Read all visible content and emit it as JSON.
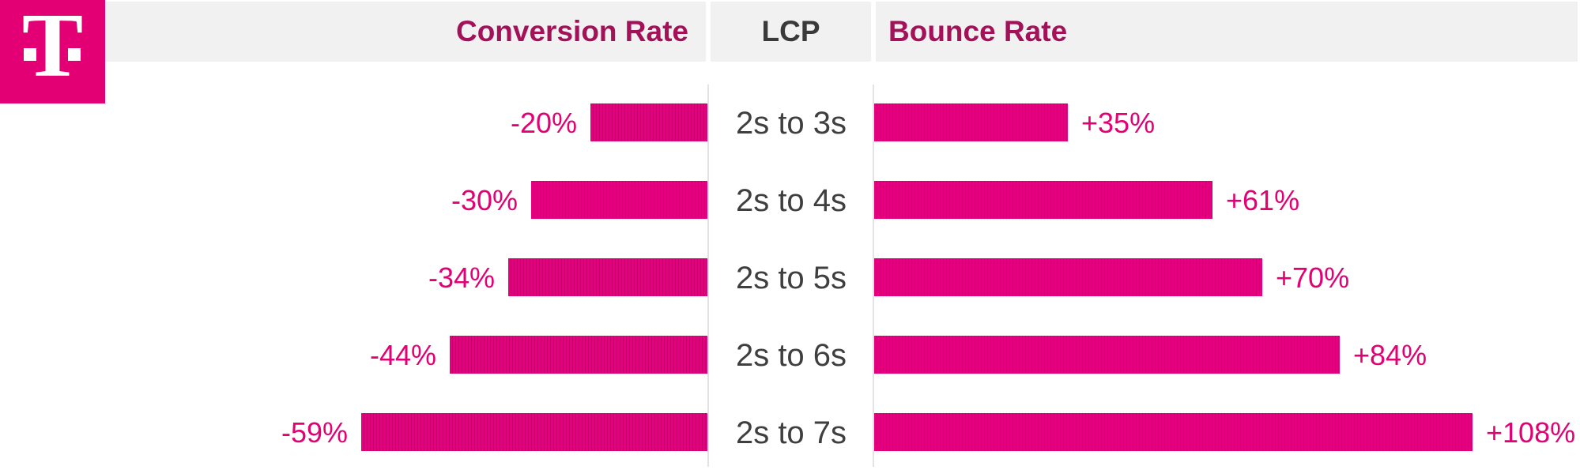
{
  "brand": {
    "logo_letter": "T",
    "magenta": "#E20074"
  },
  "header": {
    "conversion_label": "Conversion Rate",
    "lcp_label": "LCP",
    "bounce_label": "Bounce Rate"
  },
  "colors": {
    "bar_fill": "#E20074",
    "bar_stripe_dark": "#C8006C",
    "value_label": "#E20074",
    "header_text_magenta": "#A31159",
    "header_text_gray": "#3A3A3A",
    "row_label_gray": "#3F3F3F",
    "header_background": "#F1F1F1",
    "gridline": "#E3E3E3"
  },
  "chart_data": {
    "type": "bar",
    "variant": "diverging-tornado-horizontal",
    "title": "",
    "xlabel": "",
    "ylabel": "LCP",
    "categories": [
      "2s to 3s",
      "2s to 4s",
      "2s to 5s",
      "2s to 6s",
      "2s to 7s"
    ],
    "series": [
      {
        "name": "Conversion Rate",
        "side": "left",
        "values": [
          -20,
          -30,
          -34,
          -44,
          -59
        ],
        "labels": [
          "-20%",
          "-30%",
          "-34%",
          "-44%",
          "-59%"
        ]
      },
      {
        "name": "Bounce Rate",
        "side": "right",
        "values": [
          35,
          61,
          70,
          84,
          108
        ],
        "labels": [
          "+35%",
          "+61%",
          "+70%",
          "+84%",
          "+108%"
        ]
      }
    ],
    "legend_position": "none",
    "grid": false,
    "left_axis_max": 59,
    "right_axis_max": 108
  }
}
